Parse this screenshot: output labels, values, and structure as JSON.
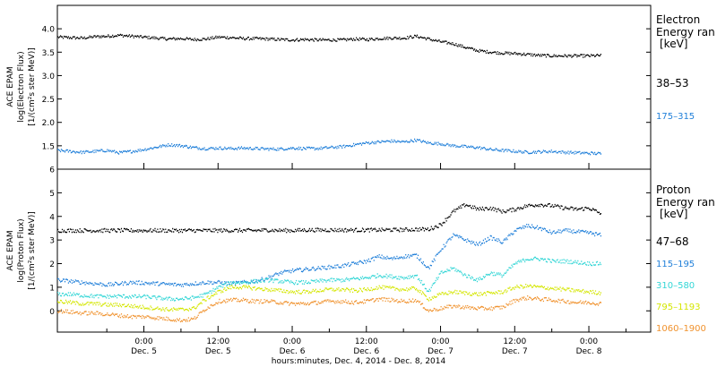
{
  "chart_data": [
    {
      "type": "scatter",
      "panel": "electron",
      "ylabel_lines": [
        "ACE EPAM",
        "log(Electron Flux)",
        "[1/(cm²s ster MeV)]"
      ],
      "legend_title": [
        "Electron",
        "Energy ran"
      ],
      "legend_unit": "[keV]",
      "ylim": [
        1.0,
        4.5
      ],
      "yticks": [
        "1.5",
        "2.0",
        "2.5",
        "3.0",
        "3.5",
        "4.0"
      ],
      "series": [
        {
          "name": "38–53",
          "color": "#000000",
          "x_hours": [
            -14,
            -12,
            -10,
            -8,
            -6,
            -4,
            -2,
            0,
            2,
            4,
            6,
            8,
            10,
            12,
            14,
            16,
            18,
            20,
            22,
            24,
            26,
            28,
            30,
            32,
            34,
            36,
            38,
            40,
            42,
            44,
            46,
            48,
            50,
            52,
            54,
            56,
            58,
            60,
            62,
            64,
            66,
            68,
            70,
            72,
            74
          ],
          "values": [
            3.82,
            3.81,
            3.8,
            3.83,
            3.84,
            3.86,
            3.84,
            3.82,
            3.8,
            3.78,
            3.79,
            3.77,
            3.78,
            3.82,
            3.81,
            3.79,
            3.79,
            3.78,
            3.77,
            3.76,
            3.77,
            3.76,
            3.76,
            3.76,
            3.78,
            3.77,
            3.79,
            3.8,
            3.8,
            3.84,
            3.78,
            3.72,
            3.68,
            3.6,
            3.53,
            3.5,
            3.48,
            3.47,
            3.45,
            3.43,
            3.42,
            3.42,
            3.42,
            3.42,
            3.43
          ]
        },
        {
          "name": "175–315",
          "color": "#1f7fd9",
          "x_hours": [
            -14,
            -12,
            -10,
            -8,
            -6,
            -4,
            -2,
            0,
            2,
            4,
            6,
            8,
            10,
            12,
            14,
            16,
            18,
            20,
            22,
            24,
            26,
            28,
            30,
            32,
            34,
            36,
            38,
            40,
            42,
            44,
            46,
            48,
            50,
            52,
            54,
            56,
            58,
            60,
            62,
            64,
            66,
            68,
            70,
            72,
            74
          ],
          "values": [
            1.4,
            1.38,
            1.36,
            1.38,
            1.4,
            1.35,
            1.38,
            1.42,
            1.47,
            1.52,
            1.5,
            1.46,
            1.44,
            1.45,
            1.44,
            1.45,
            1.44,
            1.43,
            1.43,
            1.45,
            1.44,
            1.44,
            1.46,
            1.48,
            1.52,
            1.56,
            1.58,
            1.6,
            1.58,
            1.62,
            1.56,
            1.54,
            1.5,
            1.48,
            1.46,
            1.42,
            1.4,
            1.38,
            1.36,
            1.37,
            1.38,
            1.36,
            1.35,
            1.34,
            1.33
          ]
        }
      ]
    },
    {
      "type": "scatter",
      "panel": "proton",
      "ylabel_lines": [
        "ACE EPAM",
        "log(Proton Flux)",
        "[1/(cm²s ster MeV)]"
      ],
      "legend_title": [
        "Proton",
        "Energy ran"
      ],
      "legend_unit": "[keV]",
      "ylim": [
        -0.9,
        6.0
      ],
      "yticks": [
        "0",
        "1",
        "2",
        "3",
        "4",
        "5",
        "6"
      ],
      "series": [
        {
          "name": "47–68",
          "color": "#000000",
          "x_hours": [
            -14,
            -12,
            -10,
            -8,
            -6,
            -4,
            -2,
            0,
            2,
            4,
            6,
            8,
            10,
            12,
            14,
            16,
            18,
            20,
            22,
            24,
            26,
            28,
            30,
            32,
            34,
            36,
            38,
            40,
            42,
            44,
            46,
            48,
            50,
            52,
            54,
            56,
            58,
            60,
            62,
            64,
            66,
            68,
            70,
            72,
            74
          ],
          "values": [
            3.4,
            3.4,
            3.4,
            3.4,
            3.4,
            3.4,
            3.4,
            3.4,
            3.4,
            3.4,
            3.4,
            3.4,
            3.4,
            3.4,
            3.4,
            3.4,
            3.4,
            3.42,
            3.4,
            3.4,
            3.42,
            3.42,
            3.42,
            3.42,
            3.42,
            3.42,
            3.42,
            3.43,
            3.43,
            3.45,
            3.45,
            3.65,
            4.2,
            4.5,
            4.3,
            4.35,
            4.2,
            4.3,
            4.45,
            4.5,
            4.45,
            4.35,
            4.3,
            4.35,
            4.1
          ]
        },
        {
          "name": "115–195",
          "color": "#1f7fd9",
          "x_hours": [
            -14,
            -12,
            -10,
            -8,
            -6,
            -4,
            -2,
            0,
            2,
            4,
            6,
            8,
            10,
            12,
            14,
            16,
            18,
            20,
            22,
            24,
            26,
            28,
            30,
            32,
            34,
            36,
            38,
            40,
            42,
            44,
            46,
            48,
            50,
            52,
            54,
            56,
            58,
            60,
            62,
            64,
            66,
            68,
            70,
            72,
            74
          ],
          "values": [
            1.3,
            1.25,
            1.2,
            1.15,
            1.1,
            1.15,
            1.2,
            1.18,
            1.15,
            1.12,
            1.1,
            1.15,
            1.2,
            1.2,
            1.15,
            1.2,
            1.25,
            1.4,
            1.6,
            1.7,
            1.75,
            1.8,
            1.85,
            1.9,
            2.0,
            2.1,
            2.3,
            2.2,
            2.3,
            2.35,
            1.8,
            2.6,
            3.2,
            3.0,
            2.8,
            3.1,
            2.9,
            3.4,
            3.6,
            3.5,
            3.3,
            3.4,
            3.35,
            3.3,
            3.2
          ]
        },
        {
          "name": "310–580",
          "color": "#33d6d6",
          "x_hours": [
            -14,
            -12,
            -10,
            -8,
            -6,
            -4,
            -2,
            0,
            2,
            4,
            6,
            8,
            10,
            12,
            14,
            16,
            18,
            20,
            22,
            24,
            26,
            28,
            30,
            32,
            34,
            36,
            38,
            40,
            42,
            44,
            46,
            48,
            50,
            52,
            54,
            56,
            58,
            60,
            62,
            64,
            66,
            68,
            70,
            72,
            74
          ],
          "values": [
            0.7,
            0.7,
            0.65,
            0.62,
            0.6,
            0.62,
            0.6,
            0.6,
            0.55,
            0.5,
            0.5,
            0.55,
            0.7,
            1.0,
            1.2,
            1.2,
            1.25,
            1.3,
            1.25,
            1.2,
            1.2,
            1.25,
            1.3,
            1.3,
            1.35,
            1.4,
            1.5,
            1.45,
            1.4,
            1.5,
            0.8,
            1.6,
            1.8,
            1.5,
            1.3,
            1.6,
            1.5,
            2.0,
            2.2,
            2.2,
            2.1,
            2.1,
            2.05,
            2.0,
            2.0
          ]
        },
        {
          "name": "795–1193",
          "color": "#d4e600",
          "x_hours": [
            -14,
            -12,
            -10,
            -8,
            -6,
            -4,
            -2,
            0,
            2,
            4,
            6,
            8,
            10,
            12,
            14,
            16,
            18,
            20,
            22,
            24,
            26,
            28,
            30,
            32,
            34,
            36,
            38,
            40,
            42,
            44,
            46,
            48,
            50,
            52,
            54,
            56,
            58,
            60,
            62,
            64,
            66,
            68,
            70,
            72,
            74
          ],
          "values": [
            0.4,
            0.35,
            0.3,
            0.3,
            0.25,
            0.25,
            0.2,
            0.15,
            0.1,
            0.05,
            0.05,
            0.1,
            0.5,
            0.8,
            1.0,
            1.0,
            0.95,
            0.9,
            0.85,
            0.8,
            0.8,
            0.85,
            0.9,
            0.9,
            0.85,
            0.9,
            1.0,
            0.95,
            0.9,
            0.95,
            0.5,
            0.7,
            0.8,
            0.75,
            0.7,
            0.75,
            0.8,
            1.0,
            1.05,
            1.0,
            0.95,
            0.9,
            0.85,
            0.8,
            0.75
          ]
        },
        {
          "name": "1060–1900",
          "color": "#f0922e",
          "x_hours": [
            -14,
            -12,
            -10,
            -8,
            -6,
            -4,
            -2,
            0,
            2,
            4,
            6,
            8,
            10,
            12,
            14,
            16,
            18,
            20,
            22,
            24,
            26,
            28,
            30,
            32,
            34,
            36,
            38,
            40,
            42,
            44,
            46,
            48,
            50,
            52,
            54,
            56,
            58,
            60,
            62,
            64,
            66,
            68,
            70,
            72,
            74
          ],
          "values": [
            0.0,
            -0.05,
            -0.1,
            -0.1,
            -0.15,
            -0.2,
            -0.25,
            -0.25,
            -0.3,
            -0.35,
            -0.4,
            -0.35,
            0.1,
            0.4,
            0.45,
            0.45,
            0.4,
            0.4,
            0.35,
            0.3,
            0.3,
            0.35,
            0.4,
            0.4,
            0.35,
            0.4,
            0.5,
            0.45,
            0.4,
            0.45,
            0.0,
            0.1,
            0.2,
            0.15,
            0.1,
            0.1,
            0.15,
            0.45,
            0.55,
            0.5,
            0.45,
            0.4,
            0.35,
            0.35,
            0.3
          ]
        }
      ]
    }
  ],
  "x_axis": {
    "ticks": [
      {
        "hours": 0,
        "time": "0:00",
        "day": "Dec. 5"
      },
      {
        "hours": 12,
        "time": "12:00",
        "day": "Dec. 5"
      },
      {
        "hours": 24,
        "time": "0:00",
        "day": "Dec. 6"
      },
      {
        "hours": 36,
        "time": "12:00",
        "day": "Dec. 6"
      },
      {
        "hours": 48,
        "time": "0:00",
        "day": "Dec. 7"
      },
      {
        "hours": 60,
        "time": "12:00",
        "day": "Dec. 7"
      },
      {
        "hours": 72,
        "time": "0:00",
        "day": "Dec. 8"
      }
    ],
    "xlabel": "hours:minutes, Dec. 4, 2014 - Dec. 8, 2014"
  }
}
